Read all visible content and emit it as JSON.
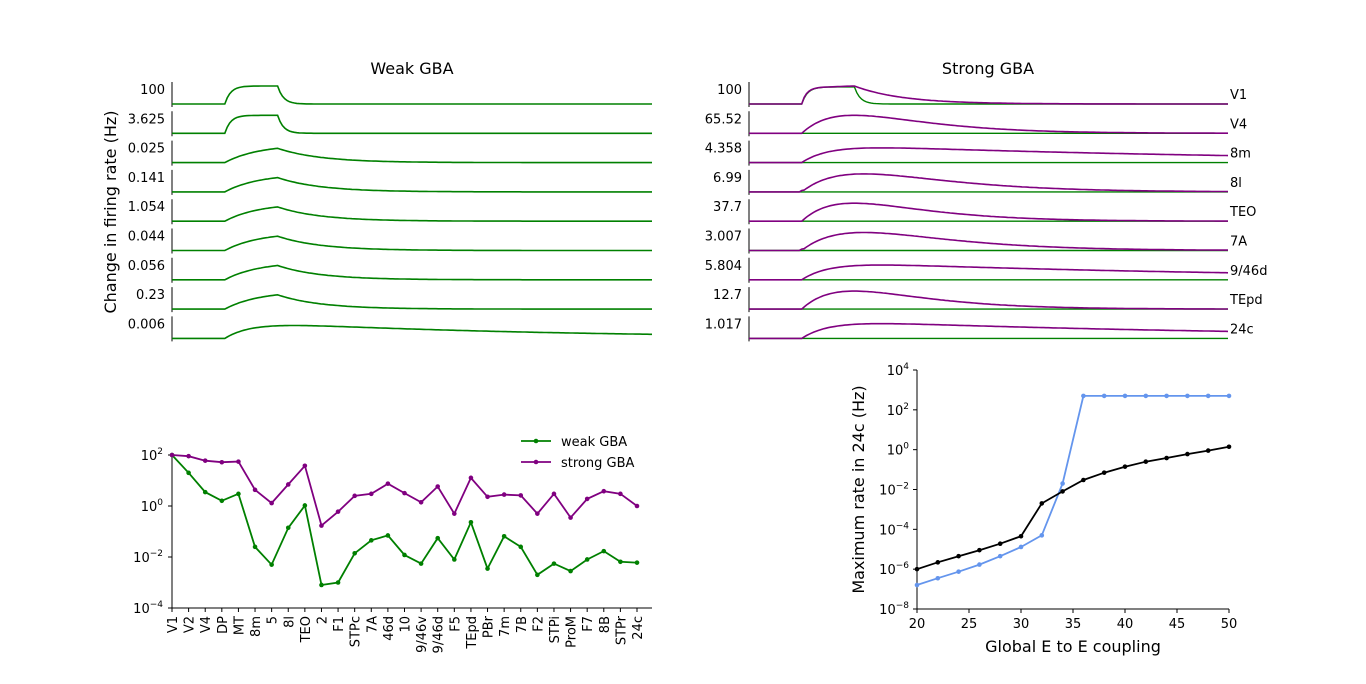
{
  "colors": {
    "weak": "#008000",
    "strong": "#800080",
    "sweep_blue": "#6495ed",
    "sweep_black": "#000000"
  },
  "panelA": {
    "title_weak": "Weak GBA",
    "title_strong": "Strong GBA",
    "ylabel": "Change in firing rate  (Hz)",
    "areas": [
      "V1",
      "V4",
      "8m",
      "8l",
      "TEO",
      "7A",
      "9/46d",
      "TEpd",
      "24c"
    ],
    "weak_peaks": [
      "100",
      "3.625",
      "0.025",
      "0.141",
      "1.054",
      "0.044",
      "0.056",
      "0.23",
      "0.006"
    ],
    "strong_peaks": [
      "100",
      "65.52",
      "4.358",
      "6.99",
      "37.7",
      "3.007",
      "5.804",
      "12.7",
      "1.017"
    ]
  },
  "chart_data": [
    {
      "type": "line",
      "panel": "weak-gba-traces",
      "title": "Weak GBA",
      "ylabel": "Change in firing rate  (Hz)",
      "series": [
        {
          "name": "V1",
          "peak": 100,
          "shape": "fast"
        },
        {
          "name": "V4",
          "peak": 3.625,
          "shape": "fast"
        },
        {
          "name": "8m",
          "peak": 0.025,
          "shape": "medium"
        },
        {
          "name": "8l",
          "peak": 0.141,
          "shape": "medium"
        },
        {
          "name": "TEO",
          "peak": 1.054,
          "shape": "medium"
        },
        {
          "name": "7A",
          "peak": 0.044,
          "shape": "medium"
        },
        {
          "name": "9/46d",
          "peak": 0.056,
          "shape": "medium"
        },
        {
          "name": "TEpd",
          "peak": 0.23,
          "shape": "medium"
        },
        {
          "name": "24c",
          "peak": 0.006,
          "shape": "slow"
        }
      ]
    },
    {
      "type": "line",
      "panel": "strong-gba-traces",
      "title": "Strong GBA",
      "series": [
        {
          "name": "V1",
          "peak": 100,
          "shape": "v1"
        },
        {
          "name": "V4",
          "peak": 65.52,
          "shape": "mid"
        },
        {
          "name": "8m",
          "peak": 4.358,
          "shape": "slow"
        },
        {
          "name": "8l",
          "peak": 6.99,
          "shape": "mid2"
        },
        {
          "name": "TEO",
          "peak": 37.7,
          "shape": "mid"
        },
        {
          "name": "7A",
          "peak": 3.007,
          "shape": "mid2"
        },
        {
          "name": "9/46d",
          "peak": 5.804,
          "shape": "slow"
        },
        {
          "name": "TEpd",
          "peak": 12.7,
          "shape": "mid"
        },
        {
          "name": "24c",
          "peak": 1.017,
          "shape": "slow"
        }
      ]
    },
    {
      "type": "line",
      "panel": "peak-rate-by-area",
      "log_y": true,
      "ylim": [
        0.0001,
        100
      ],
      "yticks": [
        "10^2",
        "10^0",
        "10^-2",
        "10^-4"
      ],
      "legend_position": "top-right",
      "categories": [
        "V1",
        "V2",
        "V4",
        "DP",
        "MT",
        "8m",
        "5",
        "8l",
        "TEO",
        "2",
        "F1",
        "STPc",
        "7A",
        "46d",
        "10",
        "9/46v",
        "9/46d",
        "F5",
        "TEpd",
        "PBr",
        "7m",
        "7B",
        "F2",
        "STPi",
        "ProM",
        "F7",
        "8B",
        "STPr",
        "24c"
      ],
      "series": [
        {
          "name": "weak GBA",
          "color": "#008000",
          "values": [
            100,
            20,
            3.5,
            1.6,
            3.0,
            0.025,
            0.005,
            0.14,
            1.05,
            0.0008,
            0.001,
            0.014,
            0.045,
            0.07,
            0.012,
            0.0055,
            0.055,
            0.008,
            0.23,
            0.0035,
            0.065,
            0.025,
            0.002,
            0.0055,
            0.0028,
            0.008,
            0.017,
            0.0065,
            0.006
          ]
        },
        {
          "name": "strong GBA",
          "color": "#800080",
          "values": [
            100,
            90,
            60,
            52,
            55,
            4.3,
            1.3,
            7.0,
            37.7,
            0.17,
            0.6,
            2.5,
            3.0,
            7.5,
            3.2,
            1.4,
            5.8,
            0.5,
            12.7,
            2.3,
            2.8,
            2.6,
            0.5,
            3.0,
            0.35,
            1.9,
            3.8,
            3.0,
            1.0
          ]
        }
      ]
    },
    {
      "type": "line",
      "panel": "coupling-sweep",
      "log_y": true,
      "xlabel": "Global E to E coupling",
      "ylabel": "Maximum rate in 24c (Hz)",
      "xlim": [
        20,
        50
      ],
      "ylim": [
        1e-08,
        10000.0
      ],
      "xticks": [
        "20",
        "25",
        "30",
        "35",
        "40",
        "45",
        "50"
      ],
      "yticks": [
        "10^4",
        "10^2",
        "10^0",
        "10^-2",
        "10^-4",
        "10^-6",
        "10^-8"
      ],
      "x": [
        20,
        22,
        24,
        26,
        28,
        30,
        32,
        34,
        36,
        38,
        40,
        42,
        44,
        46,
        48,
        50
      ],
      "series": [
        {
          "color": "#000000",
          "values": [
            1e-06,
            2.2e-06,
            4.5e-06,
            9e-06,
            1.9e-05,
            4.5e-05,
            0.002,
            0.008,
            0.03,
            0.07,
            0.14,
            0.25,
            0.38,
            0.6,
            0.9,
            1.4
          ]
        },
        {
          "color": "#6495ed",
          "values": [
            1.6e-07,
            3.5e-07,
            7.5e-07,
            1.7e-06,
            4.5e-06,
            1.3e-05,
            5e-05,
            0.02,
            500,
            500,
            500,
            500,
            500,
            500,
            500,
            500
          ]
        }
      ]
    }
  ]
}
